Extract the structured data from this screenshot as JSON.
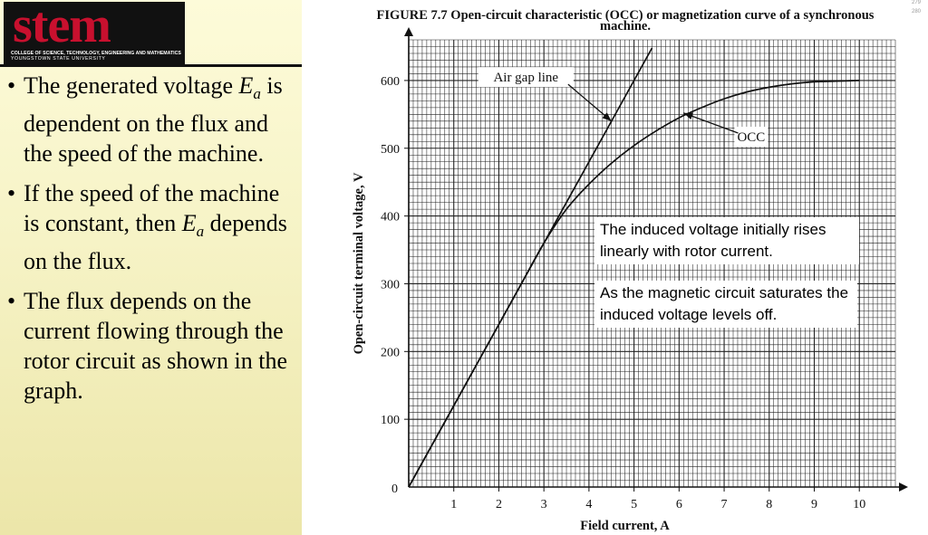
{
  "logo": {
    "word": "stem",
    "line1": "COLLEGE OF SCIENCE, TECHNOLOGY, ENGINEERING AND MATHEMATICS",
    "line2": "YOUNGSTOWN STATE UNIVERSITY"
  },
  "bullets": [
    {
      "before": "The generated voltage ",
      "sym": "E",
      "sub": "a",
      "after": " is dependent on the flux and the speed of the machine."
    },
    {
      "before": "If the speed of the machine is constant, then ",
      "sym": "E",
      "sub": "a",
      "after": " depends on the flux."
    },
    {
      "before": "The flux depends on the current flowing through the rotor circuit as shown in the graph.",
      "sym": "",
      "sub": "",
      "after": ""
    }
  ],
  "corner": {
    "a": "279",
    "b": "280"
  },
  "notes": {
    "note1": "The induced voltage initially rises linearly with rotor current.",
    "note2": "As the magnetic circuit saturates the induced voltage levels off."
  },
  "colors": {
    "panel": "#f6f3c6",
    "logo_red": "#c8102e",
    "line": "#111111"
  },
  "chart_data": {
    "type": "line",
    "title": "FIGURE 7.7 Open-circuit characteristic (OCC) or magnetization curve of a synchronous machine.",
    "xlabel": "Field current, A",
    "ylabel": "Open-circuit terminal voltage, V",
    "xlim": [
      0,
      10.8
    ],
    "ylim": [
      0,
      660
    ],
    "x_ticks": [
      0,
      1,
      2,
      3,
      4,
      5,
      6,
      7,
      8,
      9,
      10
    ],
    "y_ticks": [
      0,
      100,
      200,
      300,
      400,
      500,
      600
    ],
    "origin_label": "0",
    "grid": true,
    "series": [
      {
        "name": "Air gap line",
        "x": [
          0,
          5.4
        ],
        "y": [
          0,
          648
        ]
      },
      {
        "name": "OCC",
        "x": [
          0,
          0.5,
          1,
          1.5,
          2,
          2.5,
          3,
          3.5,
          4,
          4.5,
          5,
          5.5,
          6,
          6.5,
          7,
          7.5,
          8,
          8.5,
          9,
          9.5,
          10
        ],
        "y": [
          0,
          60,
          120,
          180,
          240,
          300,
          360,
          410,
          447,
          478,
          504,
          526,
          545,
          560,
          573,
          583,
          590,
          595,
          598,
          599,
          600
        ]
      }
    ],
    "annotations": [
      {
        "text": "Air gap line",
        "x": 2.6,
        "y": 605,
        "arrow_to": [
          4.5,
          540
        ]
      },
      {
        "text": "OCC",
        "x": 7.6,
        "y": 517,
        "arrow_to": [
          6.1,
          552
        ]
      }
    ]
  }
}
